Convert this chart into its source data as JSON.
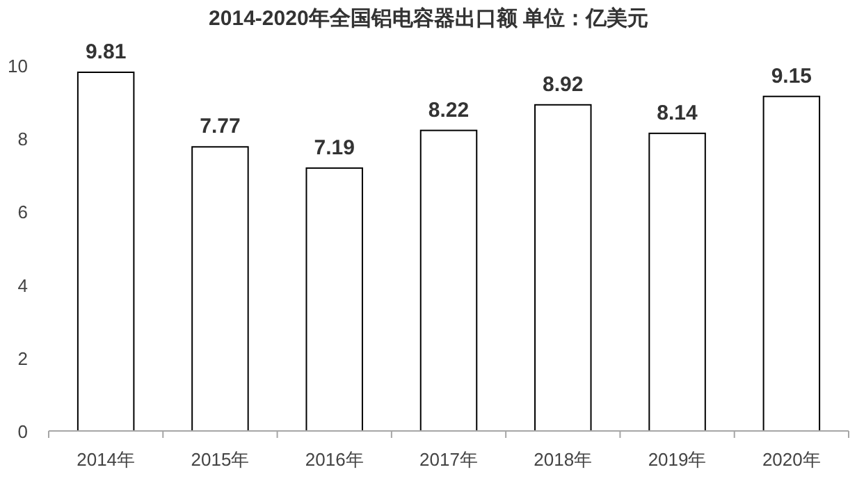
{
  "chart_data": {
    "type": "bar",
    "title": "2014-2020年全国铝电容器出口额  单位：亿美元",
    "categories": [
      "2014年",
      "2015年",
      "2016年",
      "2017年",
      "2018年",
      "2019年",
      "2020年"
    ],
    "values": [
      9.81,
      7.77,
      7.19,
      8.22,
      8.92,
      8.14,
      9.15
    ],
    "color": "#ffffff",
    "ylim": [
      0,
      10
    ],
    "yticks": [
      0,
      2,
      4,
      6,
      8,
      10
    ],
    "data_labels": true,
    "grid": false
  }
}
